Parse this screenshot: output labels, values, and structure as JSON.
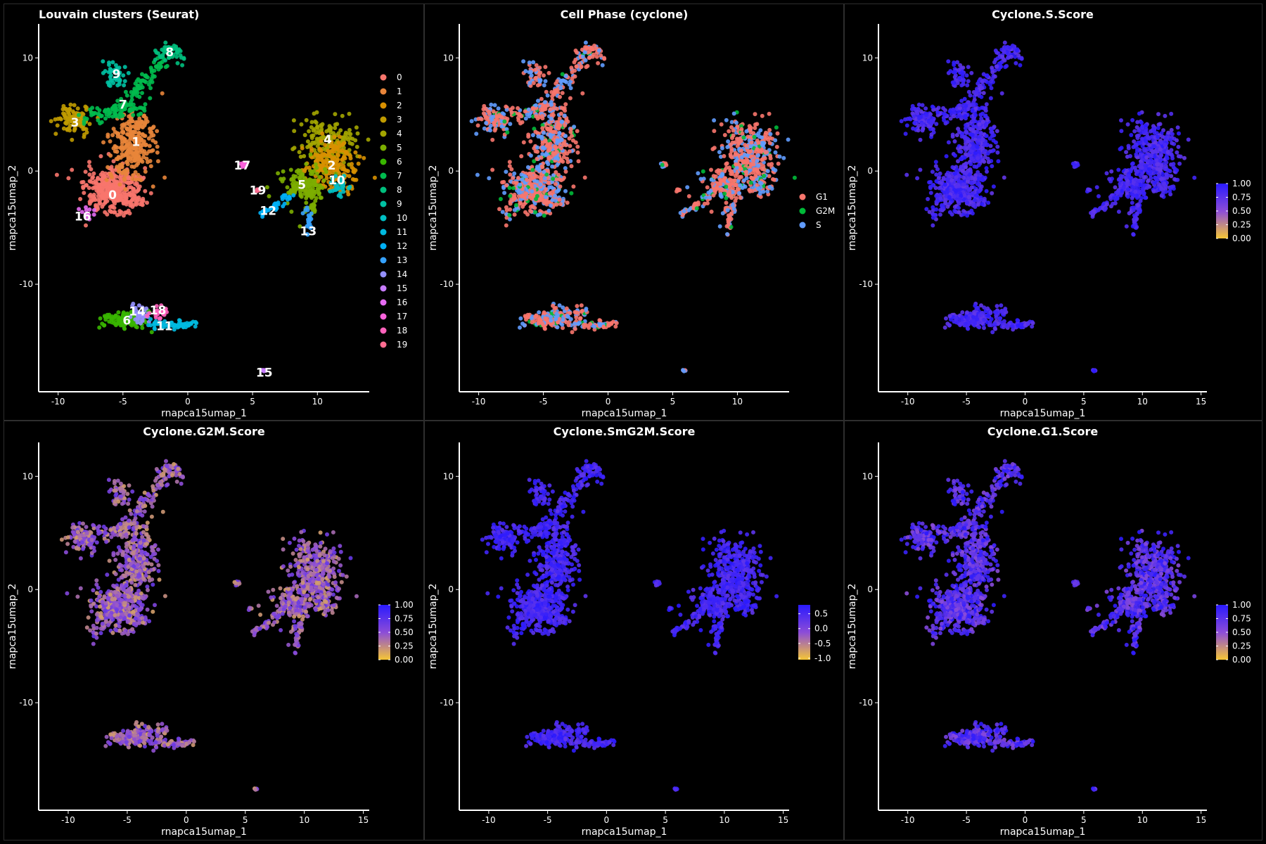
{
  "colors": {
    "background": "#000000",
    "panel_border": "#2e2e2e",
    "axis": "#ffffff",
    "text": "#ffffff",
    "score_low": "#f5c635",
    "score_mid": "#8c4cd8",
    "score_high": "#2a1aff"
  },
  "chart_data": [
    {
      "type": "scatter",
      "title": "Louvain clusters (Seurat)",
      "xlabel": "rnapca15umap_1",
      "ylabel": "rnapca15umap_2",
      "xlim": [
        -11.5,
        14
      ],
      "ylim": [
        -19.5,
        13
      ],
      "xticks": [
        -10,
        -5,
        0,
        5,
        10
      ],
      "yticks": [
        -10,
        0,
        10
      ],
      "legend": {
        "position": "right",
        "entries": [
          "0",
          "1",
          "2",
          "3",
          "4",
          "5",
          "6",
          "7",
          "8",
          "9",
          "10",
          "11",
          "12",
          "13",
          "14",
          "15",
          "16",
          "17",
          "18",
          "19"
        ],
        "colors": [
          "#f8766d",
          "#e8853a",
          "#d89000",
          "#c09b00",
          "#a3a500",
          "#7cae00",
          "#39b600",
          "#00bb4e",
          "#00bf7d",
          "#00c1a3",
          "#00bfc4",
          "#00bae0",
          "#00b0f6",
          "#35a2ff",
          "#9590ff",
          "#c77cff",
          "#e76bf3",
          "#fa62db",
          "#ff62bc",
          "#ff6c91"
        ]
      },
      "cluster_labels": [
        {
          "label": "0",
          "x": -5.8,
          "y": -2.1
        },
        {
          "label": "1",
          "x": -4.0,
          "y": 2.6
        },
        {
          "label": "2",
          "x": 11.1,
          "y": 0.5
        },
        {
          "label": "3",
          "x": -8.7,
          "y": 4.3
        },
        {
          "label": "4",
          "x": 10.8,
          "y": 2.8
        },
        {
          "label": "5",
          "x": 8.8,
          "y": -1.2
        },
        {
          "label": "6",
          "x": -4.7,
          "y": -13.2
        },
        {
          "label": "7",
          "x": -5.0,
          "y": 5.9
        },
        {
          "label": "8",
          "x": -1.4,
          "y": 10.5
        },
        {
          "label": "9",
          "x": -5.5,
          "y": 8.6
        },
        {
          "label": "10",
          "x": 11.5,
          "y": -0.8
        },
        {
          "label": "11",
          "x": -1.8,
          "y": -13.7
        },
        {
          "label": "12",
          "x": 6.2,
          "y": -3.5
        },
        {
          "label": "13",
          "x": 9.3,
          "y": -5.3
        },
        {
          "label": "14",
          "x": -3.9,
          "y": -12.4
        },
        {
          "label": "15",
          "x": 5.9,
          "y": -17.8
        },
        {
          "label": "16",
          "x": -8.1,
          "y": -4.0
        },
        {
          "label": "17",
          "x": 4.2,
          "y": 0.5
        },
        {
          "label": "18",
          "x": -2.3,
          "y": -12.3
        },
        {
          "label": "19",
          "x": 5.4,
          "y": -1.7
        }
      ]
    },
    {
      "type": "scatter",
      "title": "Cell Phase (cyclone)",
      "xlabel": "rnapca15umap_1",
      "ylabel": "rnapca15umap_2",
      "xlim": [
        -11.5,
        14
      ],
      "ylim": [
        -19.5,
        13
      ],
      "xticks": [
        -10,
        -5,
        0,
        5,
        10
      ],
      "yticks": [
        -10,
        0,
        10
      ],
      "legend": {
        "position": "right",
        "entries": [
          "G1",
          "G2M",
          "S"
        ],
        "colors": [
          "#f8766d",
          "#00ba38",
          "#619cff"
        ]
      }
    },
    {
      "type": "scatter",
      "title": "Cyclone.S.Score",
      "xlabel": "rnapca15umap_1",
      "ylabel": "rnapca15umap_2",
      "xlim": [
        -12.5,
        15.5
      ],
      "ylim": [
        -19.5,
        13
      ],
      "xticks": [
        -10,
        -5,
        0,
        5,
        10,
        15
      ],
      "yticks": [
        -10,
        0,
        10
      ],
      "colorbar": {
        "ticks": [
          "1.00",
          "0.75",
          "0.50",
          "0.25",
          "0.00"
        ],
        "range": [
          0,
          1
        ]
      }
    },
    {
      "type": "scatter",
      "title": "Cyclone.G2M.Score",
      "xlabel": "rnapca15umap_1",
      "ylabel": "rnapca15umap_2",
      "xlim": [
        -12.5,
        15.5
      ],
      "ylim": [
        -19.5,
        13
      ],
      "xticks": [
        -10,
        -5,
        0,
        5,
        10,
        15
      ],
      "yticks": [
        -10,
        0,
        10
      ],
      "colorbar": {
        "ticks": [
          "1.00",
          "0.75",
          "0.50",
          "0.25",
          "0.00"
        ],
        "range": [
          0,
          1
        ]
      }
    },
    {
      "type": "scatter",
      "title": "Cyclone.SmG2M.Score",
      "xlabel": "rnapca15umap_1",
      "ylabel": "rnapca15umap_2",
      "xlim": [
        -12.5,
        15.5
      ],
      "ylim": [
        -19.5,
        13
      ],
      "xticks": [
        -10,
        -5,
        0,
        5,
        10,
        15
      ],
      "yticks": [
        -10,
        0,
        10
      ],
      "colorbar": {
        "ticks": [
          "0.5",
          "0.0",
          "-0.5",
          "-1.0"
        ],
        "range": [
          -1.05,
          0.8
        ]
      }
    },
    {
      "type": "scatter",
      "title": "Cyclone.G1.Score",
      "xlabel": "rnapca15umap_1",
      "ylabel": "rnapca15umap_2",
      "xlim": [
        -12.5,
        15.5
      ],
      "ylim": [
        -19.5,
        13
      ],
      "xticks": [
        -10,
        -5,
        0,
        5,
        10,
        15
      ],
      "yticks": [
        -10,
        0,
        10
      ],
      "colorbar": {
        "ticks": [
          "1.00",
          "0.75",
          "0.50",
          "0.25",
          "0.00"
        ],
        "range": [
          0,
          1
        ]
      }
    }
  ]
}
